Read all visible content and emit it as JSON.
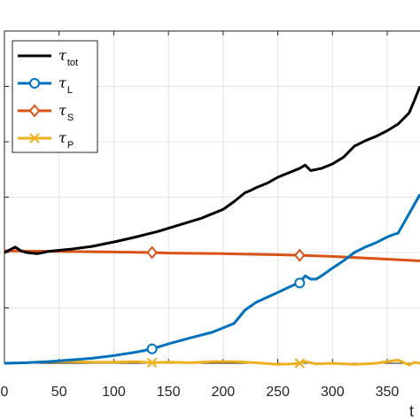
{
  "chart_data": {
    "type": "line",
    "title": "",
    "xlabel": "t",
    "ylabel": "",
    "xlim": [
      0,
      380
    ],
    "ylim": [
      -0.5,
      5
    ],
    "x_ticks": [
      0,
      50,
      100,
      150,
      200,
      250,
      300,
      350
    ],
    "x_tick_labels": [
      "0",
      "50",
      "100",
      "150",
      "200",
      "250",
      "300",
      "350"
    ],
    "y_ticks": [
      0,
      1,
      2,
      3,
      4,
      5
    ],
    "grid": true,
    "legend_position": "top-left",
    "series": [
      {
        "name": "τ_tot",
        "symbol": "τ",
        "subscript": "tot",
        "color": "#000000",
        "marker": "none",
        "x": [
          0,
          10,
          15,
          20,
          30,
          40,
          60,
          80,
          100,
          120,
          140,
          160,
          180,
          200,
          210,
          220,
          225,
          230,
          240,
          250,
          260,
          270,
          275,
          280,
          285,
          290,
          300,
          310,
          320,
          330,
          340,
          350,
          360,
          370,
          375,
          380
        ],
        "y": [
          2.0,
          2.1,
          2.03,
          2.0,
          1.98,
          2.02,
          2.06,
          2.11,
          2.19,
          2.28,
          2.38,
          2.5,
          2.62,
          2.78,
          2.92,
          3.08,
          3.12,
          3.17,
          3.25,
          3.36,
          3.44,
          3.52,
          3.58,
          3.48,
          3.5,
          3.52,
          3.6,
          3.72,
          3.92,
          4.02,
          4.1,
          4.2,
          4.32,
          4.52,
          4.75,
          5.0
        ]
      },
      {
        "name": "τ_L",
        "symbol": "τ",
        "subscript": "L",
        "color": "#0072BD",
        "marker": "circle",
        "x": [
          0,
          20,
          40,
          60,
          80,
          100,
          120,
          135,
          150,
          170,
          190,
          210,
          220,
          230,
          250,
          265,
          270,
          275,
          280,
          285,
          290,
          300,
          310,
          320,
          330,
          340,
          350,
          355,
          360,
          370,
          380
        ],
        "y": [
          0.0,
          0.01,
          0.03,
          0.06,
          0.09,
          0.14,
          0.2,
          0.26,
          0.35,
          0.46,
          0.56,
          0.72,
          0.96,
          1.1,
          1.28,
          1.42,
          1.45,
          1.58,
          1.52,
          1.52,
          1.58,
          1.72,
          1.85,
          2.0,
          2.1,
          2.18,
          2.28,
          2.32,
          2.35,
          2.7,
          3.05
        ]
      },
      {
        "name": "τ_S",
        "symbol": "τ",
        "subscript": "S",
        "color": "#D95319",
        "marker": "diamond",
        "x": [
          0,
          50,
          100,
          135,
          150,
          200,
          250,
          270,
          300,
          350,
          380
        ],
        "y": [
          2.03,
          2.02,
          2.01,
          2.0,
          1.99,
          1.98,
          1.96,
          1.95,
          1.93,
          1.88,
          1.85
        ]
      },
      {
        "name": "τ_P",
        "symbol": "τ",
        "subscript": "P",
        "color": "#EDB120",
        "marker": "x",
        "x": [
          0,
          20,
          40,
          60,
          80,
          100,
          120,
          135,
          150,
          170,
          190,
          210,
          230,
          250,
          265,
          270,
          275,
          285,
          300,
          320,
          340,
          350,
          360,
          370,
          375,
          380
        ],
        "y": [
          0.0,
          0.01,
          0.03,
          0.03,
          0.02,
          0.02,
          0.03,
          0.01,
          0.02,
          0.01,
          0.03,
          0.03,
          0.01,
          -0.02,
          -0.01,
          0.0,
          0.03,
          -0.01,
          0.0,
          -0.02,
          0.0,
          0.03,
          0.06,
          -0.03,
          0.02,
          0.0
        ]
      }
    ],
    "marker_x": [
      135,
      270
    ]
  }
}
